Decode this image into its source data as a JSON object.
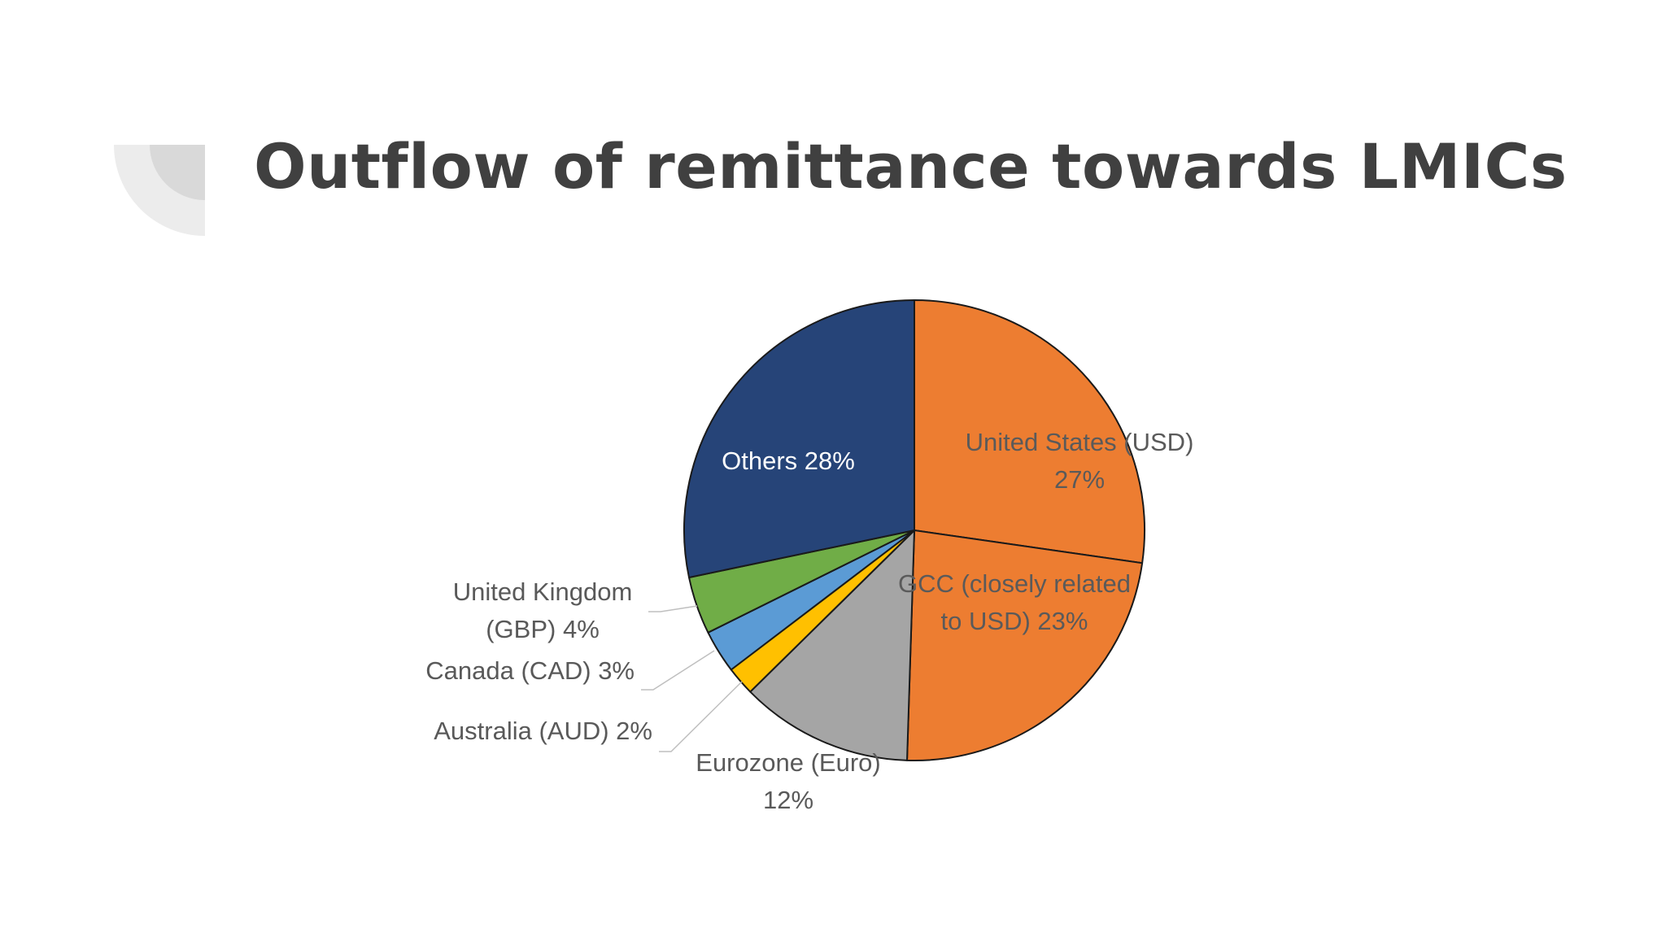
{
  "slide": {
    "title": "Outflow of remittance towards LMICs"
  },
  "chart_data": {
    "type": "pie",
    "title": "",
    "start_angle_deg": 0,
    "direction": "clockwise",
    "slices": [
      {
        "name": "United States (USD)",
        "value": 27,
        "color": "#ED7D31",
        "label_lines": [
          "United States (USD)",
          "27%"
        ],
        "label_color": "#5a5a5a"
      },
      {
        "name": "GCC (closely related to USD)",
        "value": 23,
        "color": "#ED7D31",
        "label_lines": [
          "GCC (closely related",
          "to USD) 23%"
        ],
        "label_color": "#5a5a5a"
      },
      {
        "name": "Eurozone (Euro)",
        "value": 12,
        "color": "#A5A5A5",
        "label_lines": [
          "Eurozone (Euro)",
          "12%"
        ],
        "label_color": "#595959"
      },
      {
        "name": "Australia (AUD)",
        "value": 2,
        "color": "#FFC000",
        "label_lines": [
          "Australia (AUD) 2%"
        ],
        "label_color": "#595959"
      },
      {
        "name": "Canada (CAD)",
        "value": 3,
        "color": "#5B9BD5",
        "label_lines": [
          "Canada (CAD) 3%"
        ],
        "label_color": "#595959"
      },
      {
        "name": "United Kingdom (GBP)",
        "value": 4,
        "color": "#70AD47",
        "label_lines": [
          "United Kingdom",
          "(GBP) 4%"
        ],
        "label_color": "#595959"
      },
      {
        "name": "Others",
        "value": 28,
        "color": "#264478",
        "label_lines": [
          "Others 28%"
        ],
        "label_color": "#ffffff"
      }
    ]
  }
}
